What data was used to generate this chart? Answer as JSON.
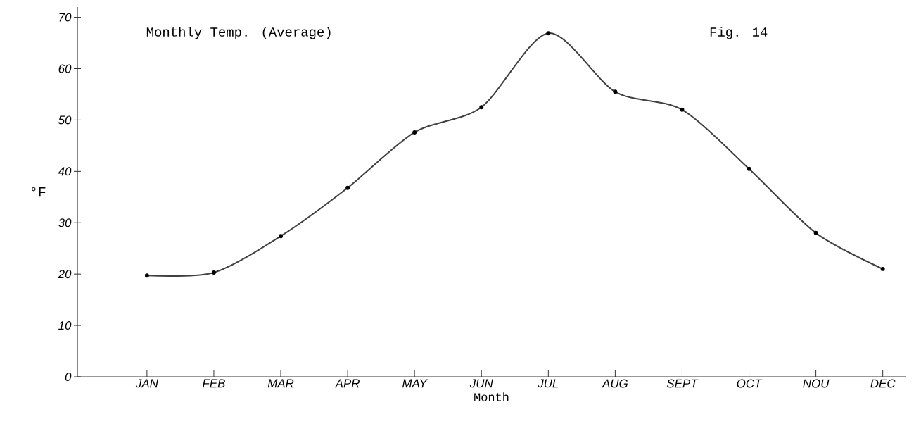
{
  "chart_data": {
    "type": "line",
    "title": "Monthly Temp. (Average)",
    "xlabel": "Month",
    "ylabel": "°F",
    "annotations": [
      "Fig. 14"
    ],
    "categories": [
      "JAN",
      "FEB",
      "MAR",
      "APR",
      "MAY",
      "JUN",
      "JUL",
      "AUG",
      "SEPT",
      "OCT",
      "NOU",
      "DEC"
    ],
    "series": [
      {
        "color": "#404040",
        "values": [
          19.7,
          20.3,
          27.4,
          36.8,
          47.6,
          52.5,
          66.9,
          55.5,
          52,
          40.5,
          28,
          21
        ]
      }
    ],
    "ylim": [
      0,
      72
    ],
    "yticks": [
      0,
      10,
      20,
      30,
      40,
      50,
      60,
      70
    ],
    "grid": false,
    "marker": "circle",
    "line_style": "solid"
  }
}
